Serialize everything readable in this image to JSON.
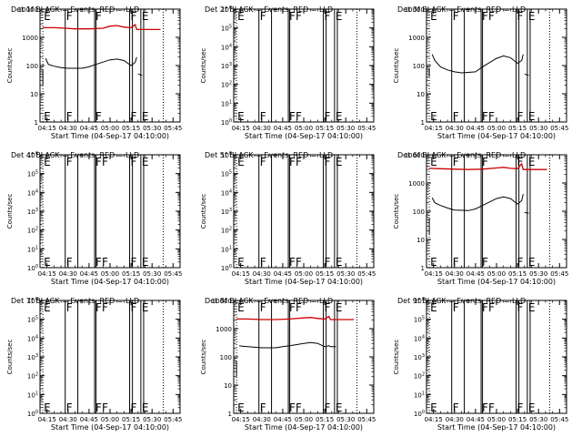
{
  "chart_data": [
    {
      "type": "line",
      "title": "Det 1f BLACK = Events, RED = LLD",
      "xlabel": "Start Time (04-Sep-17 04:10:00)",
      "ylabel": "Counts/sec",
      "xlim": [
        "04:10",
        "05:50"
      ],
      "x_ticks": [
        "04:15",
        "04:30",
        "04:45",
        "05:00",
        "05:15",
        "05:30",
        "05:45"
      ],
      "y_scale": "log",
      "ylim": [
        1,
        10000
      ],
      "y_ticks": [
        "1",
        "10",
        "100",
        "1000",
        "10000"
      ],
      "grid": false,
      "flare_lines": [
        "04:28",
        "04:37",
        "04:49",
        "04:50",
        "05:14",
        "05:16",
        "05:22",
        "05:24"
      ],
      "dotted_lines": [
        "04:12",
        "05:38"
      ],
      "markers": [
        {
          "label": "E",
          "time": "04:12"
        },
        {
          "label": "F",
          "time": "04:28"
        },
        {
          "label": "F",
          "time": "04:49"
        },
        {
          "label": "F",
          "time": "05:14"
        },
        {
          "label": "E",
          "time": "05:22"
        }
      ],
      "series": [
        {
          "color": "#cc0000",
          "points": [
            [
              "04:12",
              2200
            ],
            [
              "04:20",
              2200
            ],
            [
              "04:28",
              2100
            ],
            [
              "04:35",
              2000
            ],
            [
              "04:45",
              2000
            ],
            [
              "04:55",
              2100
            ],
            [
              "05:00",
              2500
            ],
            [
              "05:05",
              2600
            ],
            [
              "05:10",
              2300
            ],
            [
              "05:15",
              2200
            ],
            [
              "05:18",
              2800
            ],
            [
              "05:19",
              1900
            ],
            [
              "05:30",
              1900
            ],
            [
              "05:36",
              1900
            ]
          ]
        },
        {
          "color": "#000000",
          "points": [
            [
              "04:12",
              20
            ],
            [
              "04:12",
              70
            ]
          ]
        },
        {
          "color": "#000000",
          "points": [
            [
              "04:14",
              180
            ],
            [
              "04:16",
              110
            ],
            [
              "04:20",
              95
            ],
            [
              "04:25",
              85
            ],
            [
              "04:30",
              80
            ],
            [
              "04:40",
              80
            ],
            [
              "04:45",
              90
            ],
            [
              "04:50",
              110
            ],
            [
              "05:00",
              160
            ],
            [
              "05:05",
              170
            ],
            [
              "05:10",
              150
            ],
            [
              "05:15",
              100
            ],
            [
              "05:18",
              130
            ],
            [
              "05:19",
              200
            ]
          ]
        },
        {
          "color": "#000000",
          "points": [
            [
              "05:20",
              50
            ],
            [
              "05:23",
              45
            ]
          ]
        }
      ]
    },
    {
      "type": "line",
      "title": "Det 2f BLACK = Events, RED = LLD",
      "xlabel": "Start Time (04-Sep-17 04:10:00)",
      "ylabel": "Counts/sec",
      "xlim": [
        "04:10",
        "05:50"
      ],
      "x_ticks": [
        "04:15",
        "04:30",
        "04:45",
        "05:00",
        "05:15",
        "05:30",
        "05:45"
      ],
      "y_scale": "log",
      "ylim": [
        1,
        1000000
      ],
      "y_ticks": [
        "10^0",
        "10^1",
        "10^2",
        "10^3",
        "10^4",
        "10^5",
        "10^6"
      ],
      "grid": false,
      "flare_lines": [
        "04:28",
        "04:37",
        "04:49",
        "04:50",
        "05:14",
        "05:16",
        "05:22",
        "05:24"
      ],
      "dotted_lines": [
        "04:12",
        "05:38"
      ],
      "markers": [
        {
          "label": "E",
          "time": "04:12"
        },
        {
          "label": "F",
          "time": "04:28"
        },
        {
          "label": "FF",
          "time": "04:49"
        },
        {
          "label": "F",
          "time": "05:14"
        },
        {
          "label": "E",
          "time": "05:22"
        }
      ],
      "series": []
    },
    {
      "type": "line",
      "title": "Det 3f BLACK = Events, RED = LLD",
      "xlabel": "Start Time (04-Sep-17 04:10:00)",
      "ylabel": "Counts/sec",
      "xlim": [
        "04:10",
        "05:50"
      ],
      "x_ticks": [
        "04:15",
        "04:30",
        "04:45",
        "05:00",
        "05:15",
        "05:30",
        "05:45"
      ],
      "y_scale": "log",
      "ylim": [
        1,
        10000
      ],
      "y_ticks": [
        "1",
        "10",
        "100",
        "1000",
        "10000"
      ],
      "grid": false,
      "flare_lines": [
        "04:28",
        "04:37",
        "04:49",
        "04:50",
        "05:14",
        "05:16",
        "05:22",
        "05:24"
      ],
      "dotted_lines": [
        "04:12",
        "05:38"
      ],
      "markers": [
        {
          "label": "E",
          "time": "04:12"
        },
        {
          "label": "F",
          "time": "04:28"
        },
        {
          "label": "FF",
          "time": "04:49"
        },
        {
          "label": "F",
          "time": "05:14"
        },
        {
          "label": "E",
          "time": "05:22"
        }
      ],
      "series": [
        {
          "color": "#000000",
          "points": [
            [
              "04:12",
              40
            ],
            [
              "04:12",
              80
            ]
          ]
        },
        {
          "color": "#000000",
          "points": [
            [
              "04:14",
              250
            ],
            [
              "04:16",
              150
            ],
            [
              "04:20",
              90
            ],
            [
              "04:25",
              70
            ],
            [
              "04:30",
              60
            ],
            [
              "04:35",
              55
            ],
            [
              "04:45",
              60
            ],
            [
              "04:50",
              90
            ],
            [
              "05:00",
              180
            ],
            [
              "05:05",
              220
            ],
            [
              "05:10",
              190
            ],
            [
              "05:15",
              120
            ],
            [
              "05:18",
              150
            ],
            [
              "05:19",
              250
            ]
          ]
        },
        {
          "color": "#000000",
          "points": [
            [
              "05:20",
              50
            ],
            [
              "05:23",
              45
            ]
          ]
        }
      ]
    },
    {
      "type": "line",
      "title": "Det 4f BLACK = Events, RED = LLD",
      "xlabel": "Start Time (04-Sep-17 04:10:00)",
      "ylabel": "Counts/sec",
      "xlim": [
        "04:10",
        "05:50"
      ],
      "x_ticks": [
        "04:15",
        "04:30",
        "04:45",
        "05:00",
        "05:15",
        "05:30",
        "05:45"
      ],
      "y_scale": "log",
      "ylim": [
        1,
        1000000
      ],
      "y_ticks": [
        "10^0",
        "10^1",
        "10^2",
        "10^3",
        "10^4",
        "10^5",
        "10^6"
      ],
      "grid": false,
      "flare_lines": [
        "04:28",
        "04:37",
        "04:49",
        "04:50",
        "05:14",
        "05:16",
        "05:22",
        "05:24"
      ],
      "dotted_lines": [
        "04:12",
        "05:38"
      ],
      "markers": [
        {
          "label": "E",
          "time": "04:12"
        },
        {
          "label": "F",
          "time": "04:28"
        },
        {
          "label": "FF",
          "time": "04:49"
        },
        {
          "label": "F",
          "time": "05:14"
        },
        {
          "label": "E",
          "time": "05:22"
        }
      ],
      "series": []
    },
    {
      "type": "line",
      "title": "Det 5f BLACK = Events, RED = LLD",
      "xlabel": "Start Time (04-Sep-17 04:10:00)",
      "ylabel": "Counts/sec",
      "xlim": [
        "04:10",
        "05:50"
      ],
      "x_ticks": [
        "04:15",
        "04:30",
        "04:45",
        "05:00",
        "05:15",
        "05:30",
        "05:45"
      ],
      "y_scale": "log",
      "ylim": [
        1,
        1000000
      ],
      "y_ticks": [
        "10^0",
        "10^1",
        "10^2",
        "10^3",
        "10^4",
        "10^5",
        "10^6"
      ],
      "grid": false,
      "flare_lines": [
        "04:28",
        "04:37",
        "04:49",
        "04:50",
        "05:14",
        "05:16",
        "05:22",
        "05:24"
      ],
      "dotted_lines": [
        "04:12",
        "05:38"
      ],
      "markers": [
        {
          "label": "E",
          "time": "04:12"
        },
        {
          "label": "F",
          "time": "04:28"
        },
        {
          "label": "FF",
          "time": "04:49"
        },
        {
          "label": "F",
          "time": "05:14"
        },
        {
          "label": "E",
          "time": "05:22"
        }
      ],
      "series": []
    },
    {
      "type": "line",
      "title": "Det 6f BLACK = Events, RED = LLD",
      "xlabel": "Start Time (04-Sep-17 04:10:00)",
      "ylabel": "Counts/sec",
      "xlim": [
        "04:10",
        "05:50"
      ],
      "x_ticks": [
        "04:15",
        "04:30",
        "04:45",
        "05:00",
        "05:15",
        "05:30",
        "05:45"
      ],
      "y_scale": "log",
      "ylim": [
        1,
        10000
      ],
      "y_ticks": [
        "1",
        "10",
        "100",
        "1000",
        "10000"
      ],
      "grid": false,
      "flare_lines": [
        "04:28",
        "04:37",
        "04:49",
        "04:50",
        "05:14",
        "05:16",
        "05:22",
        "05:24"
      ],
      "dotted_lines": [
        "04:12",
        "05:38"
      ],
      "markers": [
        {
          "label": "E",
          "time": "04:12"
        },
        {
          "label": "F",
          "time": "04:28"
        },
        {
          "label": "F",
          "time": "04:49"
        },
        {
          "label": "F",
          "time": "05:14"
        },
        {
          "label": "E",
          "time": "05:22"
        }
      ],
      "series": [
        {
          "color": "#cc0000",
          "points": [
            [
              "04:12",
              3300
            ],
            [
              "04:20",
              3200
            ],
            [
              "04:30",
              3100
            ],
            [
              "04:40",
              3000
            ],
            [
              "04:50",
              3100
            ],
            [
              "05:00",
              3400
            ],
            [
              "05:05",
              3600
            ],
            [
              "05:10",
              3300
            ],
            [
              "05:15",
              3200
            ],
            [
              "05:18",
              4800
            ],
            [
              "05:19",
              3000
            ],
            [
              "05:30",
              3000
            ],
            [
              "05:36",
              3000
            ]
          ]
        },
        {
          "color": "#000000",
          "points": [
            [
              "04:12",
              15
            ],
            [
              "04:12",
              60
            ]
          ]
        },
        {
          "color": "#000000",
          "points": [
            [
              "04:14",
              300
            ],
            [
              "04:16",
              200
            ],
            [
              "04:20",
              160
            ],
            [
              "04:25",
              130
            ],
            [
              "04:30",
              110
            ],
            [
              "04:40",
              105
            ],
            [
              "04:45",
              120
            ],
            [
              "04:50",
              160
            ],
            [
              "05:00",
              280
            ],
            [
              "05:05",
              320
            ],
            [
              "05:10",
              280
            ],
            [
              "05:15",
              180
            ],
            [
              "05:18",
              240
            ],
            [
              "05:19",
              400
            ]
          ]
        },
        {
          "color": "#000000",
          "points": [
            [
              "05:20",
              90
            ],
            [
              "05:23",
              85
            ]
          ]
        }
      ]
    },
    {
      "type": "line",
      "title": "Det 7f BLACK = Events, RED = LLD",
      "xlabel": "Start Time (04-Sep-17 04:10:00)",
      "ylabel": "Counts/sec",
      "xlim": [
        "04:10",
        "05:50"
      ],
      "x_ticks": [
        "04:15",
        "04:30",
        "04:45",
        "05:00",
        "05:15",
        "05:30",
        "05:45"
      ],
      "y_scale": "log",
      "ylim": [
        1,
        1000000
      ],
      "y_ticks": [
        "10^0",
        "10^1",
        "10^2",
        "10^3",
        "10^4",
        "10^5",
        "10^6"
      ],
      "grid": false,
      "flare_lines": [
        "04:28",
        "04:37",
        "04:49",
        "04:50",
        "05:14",
        "05:16",
        "05:22",
        "05:24"
      ],
      "dotted_lines": [
        "04:12",
        "05:38"
      ],
      "markers": [
        {
          "label": "E",
          "time": "04:12"
        },
        {
          "label": "F",
          "time": "04:28"
        },
        {
          "label": "FF",
          "time": "04:49"
        },
        {
          "label": "F",
          "time": "05:14"
        },
        {
          "label": "E",
          "time": "05:22"
        }
      ],
      "series": []
    },
    {
      "type": "line",
      "title": "Det 8f BLACK = Events, RED = LLD",
      "xlabel": "Start Time (04-Sep-17 04:10:00)",
      "ylabel": "Counts/sec",
      "xlim": [
        "04:10",
        "05:50"
      ],
      "x_ticks": [
        "04:15",
        "04:30",
        "04:45",
        "05:00",
        "05:15",
        "05:30",
        "05:45"
      ],
      "y_scale": "log",
      "ylim": [
        1,
        10000
      ],
      "y_ticks": [
        "1",
        "10",
        "100",
        "1000",
        "10000"
      ],
      "grid": false,
      "flare_lines": [
        "04:28",
        "04:37",
        "04:49",
        "04:50",
        "05:14",
        "05:16",
        "05:22",
        "05:24"
      ],
      "dotted_lines": [
        "04:12",
        "05:38"
      ],
      "markers": [
        {
          "label": "E",
          "time": "04:12"
        },
        {
          "label": "F",
          "time": "04:28"
        },
        {
          "label": "FF",
          "time": "04:49"
        },
        {
          "label": "F",
          "time": "05:14"
        },
        {
          "label": "E",
          "time": "05:22"
        }
      ],
      "series": [
        {
          "color": "#cc0000",
          "points": [
            [
              "04:12",
              2200
            ],
            [
              "04:20",
              2200
            ],
            [
              "04:30",
              2100
            ],
            [
              "04:40",
              2100
            ],
            [
              "04:50",
              2200
            ],
            [
              "05:00",
              2400
            ],
            [
              "05:05",
              2500
            ],
            [
              "05:10",
              2300
            ],
            [
              "05:15",
              2200
            ],
            [
              "05:18",
              2700
            ],
            [
              "05:19",
              2100
            ],
            [
              "05:30",
              2100
            ],
            [
              "05:36",
              2100
            ]
          ]
        },
        {
          "color": "#000000",
          "points": [
            [
              "04:12",
              20
            ],
            [
              "04:12",
              70
            ]
          ]
        },
        {
          "color": "#000000",
          "points": [
            [
              "04:14",
              250
            ],
            [
              "04:16",
              240
            ],
            [
              "04:20",
              230
            ],
            [
              "04:30",
              210
            ],
            [
              "04:40",
              210
            ],
            [
              "04:45",
              230
            ],
            [
              "04:50",
              250
            ],
            [
              "05:00",
              300
            ],
            [
              "05:05",
              320
            ],
            [
              "05:10",
              300
            ],
            [
              "05:15",
              230
            ],
            [
              "05:18",
              250
            ],
            [
              "05:19",
              230
            ],
            [
              "05:23",
              230
            ]
          ]
        }
      ]
    },
    {
      "type": "line",
      "title": "Det 9f BLACK = Events, RED = LLD",
      "xlabel": "Start Time (04-Sep-17 04:10:00)",
      "ylabel": "Counts/sec",
      "xlim": [
        "04:10",
        "05:50"
      ],
      "x_ticks": [
        "04:15",
        "04:30",
        "04:45",
        "05:00",
        "05:15",
        "05:30",
        "05:45"
      ],
      "y_scale": "log",
      "ylim": [
        1,
        1000000
      ],
      "y_ticks": [
        "10^0",
        "10^1",
        "10^2",
        "10^3",
        "10^4",
        "10^5",
        "10^6"
      ],
      "grid": false,
      "flare_lines": [
        "04:28",
        "04:37",
        "04:49",
        "04:50",
        "05:14",
        "05:16",
        "05:22",
        "05:24"
      ],
      "dotted_lines": [
        "04:12",
        "05:38"
      ],
      "markers": [
        {
          "label": "E",
          "time": "04:12"
        },
        {
          "label": "F",
          "time": "04:28"
        },
        {
          "label": "FF",
          "time": "04:49"
        },
        {
          "label": "F",
          "time": "05:14"
        },
        {
          "label": "E",
          "time": "05:22"
        }
      ],
      "series": []
    }
  ]
}
